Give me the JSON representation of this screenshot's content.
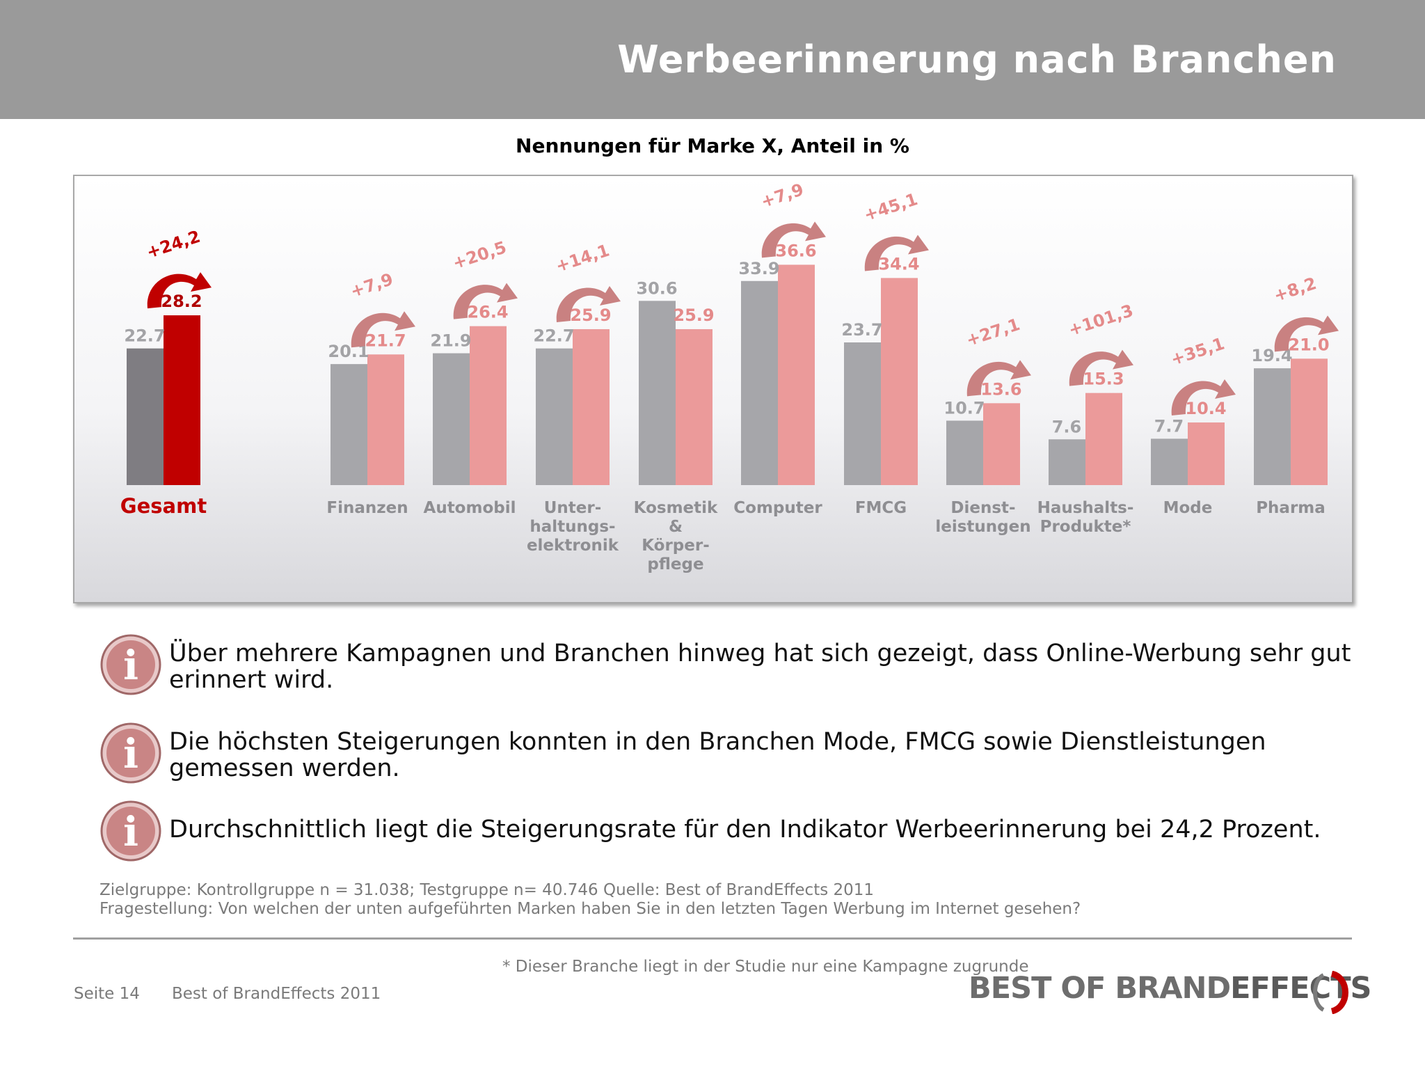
{
  "header": {
    "title": "Werbeerinnerung nach Branchen"
  },
  "chart_subtitle": "Nennungen für Marke X, Anteil in %",
  "colors": {
    "control": "#a6a6aa",
    "test": "#eb9a9a",
    "total_control": "#7f7d82",
    "total_test": "#c00000",
    "total_label": "#c00000",
    "arrow_total": "#c00000",
    "arrow": "#c98181"
  },
  "chart_data": {
    "type": "bar",
    "title": "Nennungen für Marke X, Anteil in %",
    "ylim": [
      0,
      40
    ],
    "grid": false,
    "categories": [
      "Gesamt",
      "Finanzen",
      "Automobil",
      "Unter-haltungs-elektronik",
      "Kosmetik & Körper-pflege",
      "Computer",
      "FMCG",
      "Dienst-leistungen",
      "Haushalts-Produkte*",
      "Mode",
      "Pharma"
    ],
    "category_lines": [
      [
        "Gesamt"
      ],
      [
        "Finanzen"
      ],
      [
        "Automobil"
      ],
      [
        "Unter-",
        "haltungs-",
        "elektronik"
      ],
      [
        "Kosmetik",
        "&",
        "Körper-",
        "pflege"
      ],
      [
        "Computer"
      ],
      [
        "FMCG"
      ],
      [
        "Dienst-",
        "leistungen"
      ],
      [
        "Haushalts-",
        "Produkte*"
      ],
      [
        "Mode"
      ],
      [
        "Pharma"
      ]
    ],
    "series": [
      {
        "values": [
          22.7,
          20.1,
          21.9,
          22.7,
          30.6,
          33.9,
          23.7,
          10.7,
          7.6,
          7.7,
          19.4
        ]
      },
      {
        "values": [
          28.2,
          21.7,
          26.4,
          25.9,
          25.9,
          36.6,
          34.4,
          13.6,
          15.3,
          10.4,
          21.0
        ]
      }
    ],
    "value_labels": [
      [
        "22.7",
        "20.1",
        "21.9",
        "22.7",
        "30.6",
        "33.9",
        "23.7",
        "10.7",
        "7.6",
        "7.7",
        "19.4"
      ],
      [
        "28.2",
        "21.7",
        "26.4",
        "25.9",
        "25.9",
        "36.6",
        "34.4",
        "13.6",
        "15.3",
        "10.4",
        "21.0"
      ]
    ],
    "change_labels": [
      "+24,2",
      "+7,9",
      "+20,5",
      "+14,1",
      null,
      "+7,9",
      "+45,1",
      "+27,1",
      "+101,3",
      "+35,1",
      "+8,2"
    ]
  },
  "info_items": [
    {
      "text": "Über mehrere Kampagnen und Branchen hinweg hat sich gezeigt, dass Online-Werbung sehr gut erinnert wird."
    },
    {
      "text": "Die höchsten Steigerungen konnten in den Branchen Mode, FMCG sowie Dienstleistungen gemessen werden."
    },
    {
      "text": "Durchschnittlich liegt die Steigerungsrate für den Indikator Werbeerinnerung bei 24,2 Prozent."
    }
  ],
  "info_icon": {
    "name": "info-icon",
    "glyph": "i"
  },
  "source": {
    "line1": "Zielgruppe: Kontrollgruppe n = 31.038; Testgruppe n= 40.746 Quelle: Best of BrandEffects 2011",
    "line2": "Fragestellung: Von welchen der unten aufgeführten Marken haben Sie in den letzten Tagen Werbung im Internet gesehen?"
  },
  "footnote": "* Dieser Branche liegt in der Studie nur eine Kampagne zugrunde",
  "footer": {
    "page": "Seite 14",
    "source": "Best of BrandEffects 2011"
  },
  "logo": {
    "part1": "BEST OF BRAND",
    "part2": "EFFECTS"
  }
}
